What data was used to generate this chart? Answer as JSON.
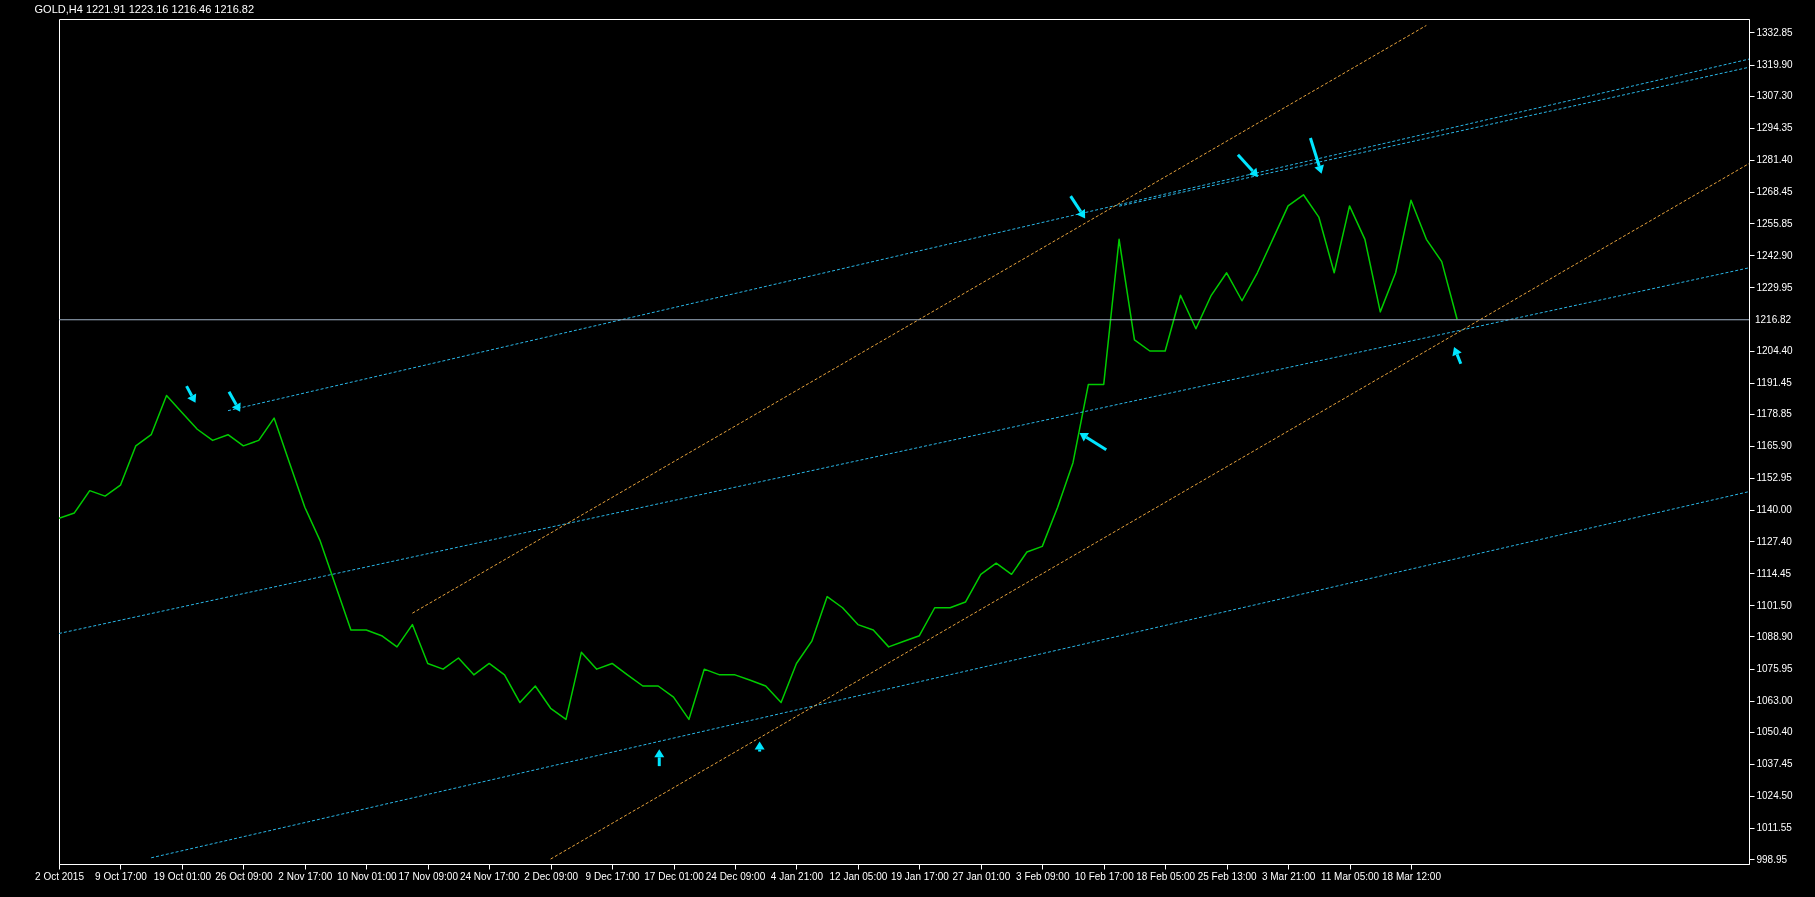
{
  "chart_data": {
    "type": "line",
    "title": "GOLD,H4  1221.91 1223.16 1216.46 1216.82",
    "categories": [
      "2 Oct 2015",
      null,
      null,
      null,
      "9 Oct 17:00",
      null,
      null,
      null,
      "19 Oct 01:00",
      null,
      null,
      null,
      "26 Oct 09:00",
      null,
      null,
      null,
      "2 Nov 17:00",
      null,
      null,
      null,
      "10 Nov 01:00",
      null,
      null,
      null,
      "17 Nov 09:00",
      null,
      null,
      null,
      "24 Nov 17:00",
      null,
      null,
      null,
      "2 Dec 09:00",
      null,
      null,
      null,
      "9 Dec 17:00",
      null,
      null,
      null,
      "17 Dec 01:00",
      null,
      null,
      null,
      "24 Dec 09:00",
      null,
      null,
      null,
      "4 Jan 21:00",
      null,
      null,
      null,
      "12 Jan 05:00",
      null,
      null,
      null,
      "19 Jan 17:00",
      null,
      null,
      null,
      "27 Jan 01:00",
      null,
      null,
      null,
      "3 Feb 09:00",
      null,
      null,
      null,
      "10 Feb 17:00",
      null,
      null,
      null,
      "18 Feb 05:00",
      null,
      null,
      null,
      "25 Feb 13:00",
      null,
      null,
      null,
      "3 Mar 21:00",
      null,
      null,
      null,
      "11 Mar 05:00",
      null,
      null,
      null,
      "18 Mar 12:00",
      null,
      null,
      null,
      null,
      null,
      null,
      null,
      null,
      null,
      null,
      null,
      null,
      null,
      null,
      null,
      null,
      null,
      null,
      null,
      null,
      null,
      null
    ],
    "series": [
      {
        "type": "line",
        "color": "#00cc00",
        "line_style": "solid",
        "values": [
          1136.6,
          1138.8,
          1147.8,
          1145.6,
          1150,
          1165.9,
          1170.4,
          1186.2,
          1179.4,
          1172.6,
          1168.1,
          1170.4,
          1165.9,
          1168.1,
          1177.1,
          1159.1,
          1141.1,
          1127.5,
          1109.5,
          1091.5,
          1091.5,
          1089.2,
          1084.7,
          1093.7,
          1078,
          1075.7,
          1080.2,
          1073.4,
          1078,
          1073.4,
          1062.2,
          1068.9,
          1059.9,
          1055.4,
          1082.5,
          1075.7,
          1078,
          1073.4,
          1068.9,
          1068.9,
          1064.4,
          1055.4,
          1075.7,
          1073.4,
          1073.4,
          1071.2,
          1068.9,
          1062.2,
          1078,
          1087,
          1105,
          1100.5,
          1093.7,
          1091.5,
          1084.7,
          1087,
          1089.2,
          1100.5,
          1100.5,
          1102.8,
          1114,
          1118.5,
          1114,
          1123,
          1125.3,
          1141.1,
          1159.1,
          1190.7,
          1190.7,
          1249.3,
          1208.7,
          1204.2,
          1204.2,
          1226.7,
          1213.2,
          1226.7,
          1235.8,
          1224.5,
          1235.8,
          1249.3,
          1262.8,
          1267.3,
          1258.3,
          1235.8,
          1262.8,
          1249.3,
          1220,
          1235.8,
          1265.1,
          1249.3,
          1240.3,
          1217,
          null,
          null,
          null,
          null,
          null,
          null,
          null,
          null,
          null,
          null,
          null,
          null,
          null,
          null,
          null,
          null,
          null,
          null,
          null
        ]
      },
      {
        "type": "line",
        "color": "#29b6e6",
        "line_style": "dashed",
        "values": [
          null,
          null,
          null,
          null,
          null,
          null,
          null,
          null,
          null,
          null,
          null,
          1180.1,
          null,
          null,
          null,
          null,
          null,
          null,
          null,
          null,
          null,
          null,
          null,
          null,
          null,
          null,
          null,
          null,
          null,
          null,
          null,
          null,
          null,
          null,
          null,
          null,
          null,
          null,
          null,
          null,
          null,
          null,
          null,
          null,
          null,
          null,
          null,
          null,
          null,
          null,
          null,
          null,
          null,
          null,
          null,
          null,
          null,
          null,
          null,
          null,
          null,
          null,
          null,
          null,
          null,
          null,
          null,
          null,
          null,
          null,
          null,
          null,
          null,
          null,
          null,
          null,
          null,
          null,
          null,
          null,
          null,
          null,
          null,
          null,
          null,
          null,
          null,
          null,
          null,
          null,
          null,
          null,
          null,
          null,
          null,
          null,
          null,
          null,
          null,
          null,
          null,
          null,
          null,
          null,
          null,
          null,
          null,
          null,
          null,
          null,
          1322.1
        ]
      },
      {
        "type": "line",
        "color": "#29b6e6",
        "line_style": "dashed",
        "values": [
          null,
          null,
          null,
          null,
          null,
          null,
          null,
          null,
          null,
          null,
          null,
          null,
          null,
          null,
          null,
          null,
          null,
          null,
          null,
          null,
          null,
          null,
          null,
          null,
          null,
          null,
          null,
          null,
          null,
          null,
          null,
          null,
          null,
          null,
          null,
          null,
          null,
          null,
          null,
          null,
          null,
          null,
          null,
          null,
          null,
          null,
          null,
          null,
          null,
          null,
          null,
          null,
          null,
          null,
          null,
          null,
          null,
          null,
          null,
          null,
          null,
          null,
          null,
          null,
          null,
          null,
          null,
          null,
          null,
          1262.7,
          null,
          null,
          null,
          null,
          null,
          null,
          null,
          null,
          null,
          null,
          null,
          null,
          null,
          null,
          null,
          null,
          null,
          null,
          null,
          null,
          null,
          null,
          null,
          null,
          null,
          null,
          null,
          null,
          null,
          null,
          null,
          null,
          null,
          null,
          null,
          null,
          null,
          null,
          null,
          null,
          1318.8
        ]
      },
      {
        "type": "line",
        "color": "#29b6e6",
        "line_style": "dashed",
        "values": [
          1090.1,
          null,
          null,
          null,
          null,
          null,
          null,
          null,
          null,
          null,
          null,
          null,
          null,
          null,
          null,
          null,
          null,
          null,
          null,
          null,
          null,
          null,
          null,
          null,
          null,
          null,
          null,
          null,
          null,
          null,
          null,
          null,
          null,
          null,
          null,
          null,
          null,
          null,
          null,
          null,
          null,
          null,
          null,
          null,
          null,
          null,
          null,
          null,
          null,
          null,
          null,
          null,
          null,
          null,
          null,
          null,
          null,
          null,
          null,
          null,
          null,
          null,
          null,
          null,
          null,
          null,
          null,
          null,
          null,
          null,
          null,
          null,
          null,
          null,
          null,
          null,
          null,
          null,
          null,
          null,
          null,
          null,
          null,
          null,
          null,
          null,
          null,
          null,
          null,
          null,
          null,
          null,
          null,
          null,
          null,
          null,
          null,
          null,
          null,
          null,
          null,
          null,
          null,
          null,
          null,
          null,
          null,
          null,
          null,
          null,
          1237.8
        ]
      },
      {
        "type": "line",
        "color": "#29b6e6",
        "line_style": "dashed",
        "values": [
          null,
          null,
          null,
          null,
          null,
          null,
          999.5,
          null,
          null,
          null,
          null,
          null,
          null,
          null,
          null,
          null,
          null,
          null,
          null,
          null,
          null,
          null,
          null,
          null,
          null,
          null,
          null,
          null,
          null,
          null,
          null,
          null,
          null,
          null,
          null,
          null,
          null,
          null,
          null,
          null,
          null,
          null,
          null,
          null,
          null,
          null,
          null,
          null,
          null,
          null,
          null,
          null,
          null,
          null,
          null,
          null,
          null,
          null,
          null,
          null,
          null,
          null,
          null,
          null,
          null,
          null,
          null,
          null,
          null,
          null,
          null,
          null,
          null,
          null,
          null,
          null,
          null,
          null,
          null,
          null,
          null,
          null,
          null,
          null,
          null,
          null,
          null,
          null,
          null,
          null,
          null,
          null,
          null,
          null,
          null,
          null,
          null,
          null,
          null,
          null,
          null,
          null,
          null,
          null,
          null,
          null,
          null,
          null,
          null,
          null,
          1147.4
        ]
      },
      {
        "type": "line",
        "color": "#e6a23c",
        "line_style": "dashed",
        "values": [
          null,
          null,
          null,
          null,
          null,
          null,
          null,
          null,
          null,
          null,
          null,
          null,
          null,
          null,
          null,
          null,
          null,
          null,
          null,
          null,
          null,
          null,
          null,
          1098.3,
          null,
          null,
          null,
          null,
          null,
          null,
          null,
          null,
          null,
          null,
          null,
          null,
          null,
          null,
          null,
          null,
          null,
          null,
          null,
          null,
          null,
          null,
          null,
          null,
          null,
          null,
          null,
          null,
          null,
          null,
          null,
          null,
          null,
          null,
          null,
          null,
          null,
          null,
          null,
          null,
          null,
          null,
          null,
          null,
          null,
          null,
          null,
          null,
          null,
          null,
          null,
          null,
          null,
          null,
          null,
          null,
          null,
          null,
          null,
          null,
          null,
          null,
          null,
          null,
          null,
          1335.7,
          null,
          null,
          null,
          null,
          null,
          null,
          null,
          null,
          null,
          null,
          null,
          null,
          null,
          null,
          null,
          null,
          null,
          null,
          null,
          null,
          null
        ]
      },
      {
        "type": "line",
        "color": "#e6a23c",
        "line_style": "dashed",
        "values": [
          null,
          null,
          null,
          null,
          null,
          null,
          null,
          null,
          null,
          null,
          null,
          null,
          null,
          null,
          null,
          null,
          null,
          null,
          null,
          null,
          null,
          null,
          null,
          null,
          null,
          null,
          null,
          null,
          null,
          null,
          null,
          null,
          999,
          null,
          null,
          null,
          null,
          null,
          null,
          null,
          null,
          null,
          null,
          null,
          null,
          null,
          null,
          null,
          null,
          null,
          null,
          null,
          null,
          null,
          null,
          null,
          null,
          null,
          null,
          null,
          null,
          null,
          null,
          null,
          null,
          null,
          null,
          null,
          null,
          null,
          null,
          null,
          null,
          null,
          null,
          null,
          null,
          null,
          null,
          null,
          null,
          null,
          null,
          null,
          null,
          null,
          null,
          null,
          null,
          null,
          null,
          null,
          null,
          null,
          null,
          null,
          null,
          null,
          null,
          null,
          null,
          null,
          null,
          null,
          null,
          null,
          null,
          null,
          null,
          null,
          1279.9
        ]
      }
    ],
    "ylim": [
      997,
      1338.3
    ],
    "yticks": [
      {
        "value": 998.95,
        "label": "998.95"
      },
      {
        "value": 1011.55,
        "label": "1011.55"
      },
      {
        "value": 1024.5,
        "label": "1024.50"
      },
      {
        "value": 1037.45,
        "label": "1037.45"
      },
      {
        "value": 1050.4,
        "label": "1050.40"
      },
      {
        "value": 1063,
        "label": "1063.00"
      },
      {
        "value": 1075.95,
        "label": "1075.95"
      },
      {
        "value": 1088.9,
        "label": "1088.90"
      },
      {
        "value": 1101.5,
        "label": "1101.50"
      },
      {
        "value": 1114.45,
        "label": "1114.45"
      },
      {
        "value": 1127.4,
        "label": "1127.40"
      },
      {
        "value": 1140,
        "label": "1140.00"
      },
      {
        "value": 1152.95,
        "label": "1152.95"
      },
      {
        "value": 1165.9,
        "label": "1165.90"
      },
      {
        "value": 1178.85,
        "label": "1178.85"
      },
      {
        "value": 1191.45,
        "label": "1191.45"
      },
      {
        "value": 1204.4,
        "label": "1204.40"
      },
      {
        "value": 1229.95,
        "label": "1229.95"
      },
      {
        "value": 1242.9,
        "label": "1242.90"
      },
      {
        "value": 1255.85,
        "label": "1255.85"
      },
      {
        "value": 1268.45,
        "label": "1268.45"
      },
      {
        "value": 1281.4,
        "label": "1281.40"
      },
      {
        "value": 1294.35,
        "label": "1294.35"
      },
      {
        "value": 1307.3,
        "label": "1307.30"
      },
      {
        "value": 1319.9,
        "label": "1319.90"
      },
      {
        "value": 1332.85,
        "label": "1332.85"
      }
    ],
    "ref_lines": [
      {
        "axis": "y",
        "value": 1216.82,
        "label": "1216.82",
        "color": "#9fb0c4"
      }
    ]
  }
}
